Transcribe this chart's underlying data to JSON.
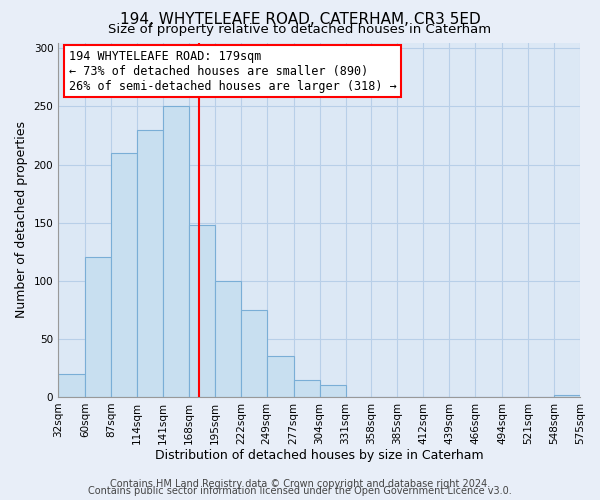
{
  "title": "194, WHYTELEAFE ROAD, CATERHAM, CR3 5ED",
  "subtitle": "Size of property relative to detached houses in Caterham",
  "xlabel": "Distribution of detached houses by size in Caterham",
  "ylabel": "Number of detached properties",
  "bar_edges": [
    32,
    60,
    87,
    114,
    141,
    168,
    195,
    222,
    249,
    277,
    304,
    331,
    358,
    385,
    412,
    439,
    466,
    494,
    521,
    548,
    575
  ],
  "bar_heights": [
    20,
    120,
    210,
    230,
    250,
    148,
    100,
    75,
    35,
    15,
    10,
    0,
    0,
    0,
    0,
    0,
    0,
    0,
    0,
    2
  ],
  "bar_color": "#c8dff0",
  "bar_edge_color": "#7aaed6",
  "vline_x": 179,
  "vline_color": "red",
  "annotation_lines": [
    "194 WHYTELEAFE ROAD: 179sqm",
    "← 73% of detached houses are smaller (890)",
    "26% of semi-detached houses are larger (318) →"
  ],
  "ylim": [
    0,
    305
  ],
  "yticks": [
    0,
    50,
    100,
    150,
    200,
    250,
    300
  ],
  "xtick_labels": [
    "32sqm",
    "60sqm",
    "87sqm",
    "114sqm",
    "141sqm",
    "168sqm",
    "195sqm",
    "222sqm",
    "249sqm",
    "277sqm",
    "304sqm",
    "331sqm",
    "358sqm",
    "385sqm",
    "412sqm",
    "439sqm",
    "466sqm",
    "494sqm",
    "521sqm",
    "548sqm",
    "575sqm"
  ],
  "footer_line1": "Contains HM Land Registry data © Crown copyright and database right 2024.",
  "footer_line2": "Contains public sector information licensed under the Open Government Licence v3.0.",
  "bg_color": "#e8eef8",
  "plot_bg_color": "#dce8f5",
  "grid_color": "#b8cfe8",
  "title_fontsize": 11,
  "subtitle_fontsize": 9.5,
  "axis_label_fontsize": 9,
  "tick_fontsize": 7.5,
  "annotation_fontsize": 8.5,
  "footer_fontsize": 7
}
